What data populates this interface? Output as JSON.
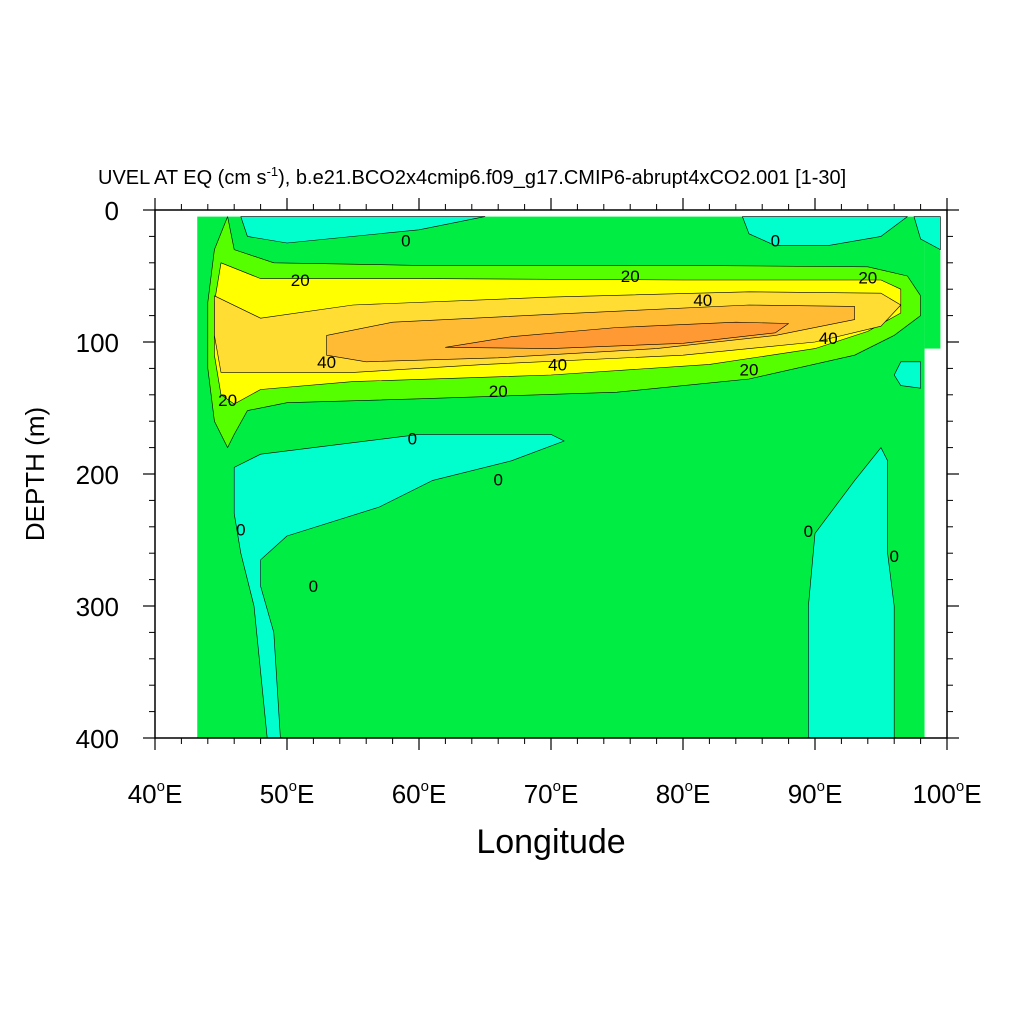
{
  "chart_data": {
    "type": "contour",
    "title_main": "UVEL AT EQ (cm s",
    "title_exponent": "-1",
    "title_rest": "), b.e21.BCO2x4cmip6.f09_g17.CMIP6-abrupt4xCO2.001 [1-30]",
    "xlabel": "Longitude",
    "ylabel": "DEPTH (m)",
    "xlim": [
      40,
      100
    ],
    "ylim": [
      0,
      400
    ],
    "y_inverted": true,
    "x_ticks": [
      {
        "value": 40,
        "num": "40",
        "deg": "o",
        "suffix": "E"
      },
      {
        "value": 50,
        "num": "50",
        "deg": "o",
        "suffix": "E"
      },
      {
        "value": 60,
        "num": "60",
        "deg": "o",
        "suffix": "E"
      },
      {
        "value": 70,
        "num": "70",
        "deg": "o",
        "suffix": "E"
      },
      {
        "value": 80,
        "num": "80",
        "deg": "o",
        "suffix": "E"
      },
      {
        "value": 90,
        "num": "90",
        "deg": "o",
        "suffix": "E"
      },
      {
        "value": 100,
        "num": "100",
        "deg": "o",
        "suffix": "E"
      }
    ],
    "y_ticks": [
      {
        "value": 0,
        "label": "0"
      },
      {
        "value": 100,
        "label": "100"
      },
      {
        "value": 200,
        "label": "200"
      },
      {
        "value": 300,
        "label": "300"
      },
      {
        "value": 400,
        "label": "400"
      }
    ],
    "contour_levels": [
      0,
      20,
      40,
      60
    ],
    "fill_colors": {
      "below_0": "#00ffcc",
      "0_to_10": "#00ee44",
      "10_to_20": "#55ff00",
      "20_to_30": "#ffff00",
      "30_to_40": "#ffdd33",
      "40_to_50": "#ffbb33",
      "50_to_60": "#ff9933"
    },
    "data_region": {
      "lon_min": 43.2,
      "lon_max": 99.5,
      "depth_min": 5,
      "depth_max": 400
    },
    "regions": [
      {
        "name": "band-10",
        "color": "#55ff00",
        "points": [
          [
            45.5,
            5
          ],
          [
            46,
            30
          ],
          [
            49,
            40
          ],
          [
            60,
            42
          ],
          [
            80,
            42
          ],
          [
            94,
            43
          ],
          [
            97,
            50
          ],
          [
            98,
            65
          ],
          [
            98,
            80
          ],
          [
            96,
            95
          ],
          [
            93,
            110
          ],
          [
            85,
            128
          ],
          [
            75,
            138
          ],
          [
            60,
            143
          ],
          [
            50,
            146
          ],
          [
            47,
            152
          ],
          [
            46,
            170
          ],
          [
            45.5,
            180
          ],
          [
            44.5,
            160
          ],
          [
            44,
            120
          ],
          [
            44,
            70
          ],
          [
            44.5,
            30
          ]
        ]
      },
      {
        "name": "band-20",
        "color": "#ffff00",
        "points": [
          [
            45,
            40
          ],
          [
            48,
            52
          ],
          [
            60,
            52
          ],
          [
            80,
            53
          ],
          [
            95,
            53
          ],
          [
            96.5,
            60
          ],
          [
            96.5,
            78
          ],
          [
            94,
            92
          ],
          [
            90,
            105
          ],
          [
            82,
            117
          ],
          [
            70,
            125
          ],
          [
            55,
            130
          ],
          [
            48,
            136
          ],
          [
            46,
            147
          ],
          [
            45,
            140
          ],
          [
            44.5,
            110
          ],
          [
            44.5,
            70
          ]
        ]
      },
      {
        "name": "band-30",
        "color": "#ffdd33",
        "points": [
          [
            44.5,
            65
          ],
          [
            48,
            82
          ],
          [
            55,
            72
          ],
          [
            70,
            66
          ],
          [
            85,
            62
          ],
          [
            95,
            63
          ],
          [
            96.5,
            72
          ],
          [
            95,
            88
          ],
          [
            90,
            100
          ],
          [
            80,
            110
          ],
          [
            65,
            117
          ],
          [
            55,
            123
          ],
          [
            45,
            123
          ],
          [
            44.5,
            95
          ]
        ]
      },
      {
        "name": "band-40",
        "color": "#ffbb33",
        "points": [
          [
            53,
            95
          ],
          [
            58,
            85
          ],
          [
            70,
            79
          ],
          [
            85,
            72
          ],
          [
            93,
            73
          ],
          [
            93,
            83
          ],
          [
            87,
            95
          ],
          [
            78,
            105
          ],
          [
            66,
            112
          ],
          [
            56,
            115
          ],
          [
            53,
            110
          ]
        ]
      },
      {
        "name": "band-50",
        "color": "#ff9933",
        "points": [
          [
            62,
            104
          ],
          [
            67,
            96
          ],
          [
            75,
            89
          ],
          [
            84,
            85
          ],
          [
            88,
            86
          ],
          [
            87,
            93
          ],
          [
            80,
            101
          ],
          [
            70,
            105
          ]
        ]
      },
      {
        "name": "neg-top-left",
        "color": "#00ffcc",
        "points": [
          [
            46.5,
            5
          ],
          [
            65,
            5
          ],
          [
            60,
            15
          ],
          [
            50,
            25
          ],
          [
            47,
            20
          ]
        ]
      },
      {
        "name": "neg-top-right",
        "color": "#00ffcc",
        "points": [
          [
            84.5,
            5
          ],
          [
            97,
            5
          ],
          [
            95,
            20
          ],
          [
            91,
            27
          ],
          [
            87,
            27
          ],
          [
            85,
            18
          ]
        ]
      },
      {
        "name": "neg-upper-right",
        "color": "#00ffcc",
        "points": [
          [
            97.5,
            5
          ],
          [
            99.5,
            5
          ],
          [
            99.5,
            30
          ],
          [
            98,
            22
          ]
        ]
      },
      {
        "name": "neg-small-right",
        "color": "#00ffcc",
        "points": [
          [
            96.5,
            115
          ],
          [
            98,
            115
          ],
          [
            98,
            135
          ],
          [
            96.5,
            133
          ],
          [
            96,
            125
          ]
        ]
      },
      {
        "name": "neg-left-deep",
        "color": "#00ffcc",
        "points": [
          [
            46,
            195
          ],
          [
            48,
            185
          ],
          [
            60,
            170
          ],
          [
            70,
            170
          ],
          [
            71,
            175
          ],
          [
            67,
            190
          ],
          [
            61,
            205
          ],
          [
            57,
            225
          ],
          [
            50,
            247
          ],
          [
            48,
            265
          ],
          [
            48,
            285
          ],
          [
            49,
            320
          ],
          [
            49.5,
            400
          ],
          [
            48.5,
            400
          ],
          [
            47.5,
            300
          ],
          [
            46.5,
            260
          ],
          [
            46,
            230
          ]
        ]
      },
      {
        "name": "neg-right-deep",
        "color": "#00ffcc",
        "points": [
          [
            89.5,
            400
          ],
          [
            89.5,
            300
          ],
          [
            90,
            245
          ],
          [
            93,
            205
          ],
          [
            95,
            180
          ],
          [
            95.5,
            190
          ],
          [
            95.5,
            260
          ],
          [
            96,
            300
          ],
          [
            96,
            400
          ]
        ]
      }
    ],
    "contour_labels": [
      {
        "text": "0",
        "lon": 59,
        "depth": 23
      },
      {
        "text": "0",
        "lon": 87,
        "depth": 23
      },
      {
        "text": "20",
        "lon": 51,
        "depth": 53
      },
      {
        "text": "20",
        "lon": 76,
        "depth": 50
      },
      {
        "text": "20",
        "lon": 94,
        "depth": 51
      },
      {
        "text": "40",
        "lon": 81.5,
        "depth": 68
      },
      {
        "text": "40",
        "lon": 53,
        "depth": 115
      },
      {
        "text": "40",
        "lon": 70.5,
        "depth": 117
      },
      {
        "text": "40",
        "lon": 91,
        "depth": 97
      },
      {
        "text": "20",
        "lon": 45.5,
        "depth": 144
      },
      {
        "text": "20",
        "lon": 66,
        "depth": 137
      },
      {
        "text": "20",
        "lon": 85,
        "depth": 121
      },
      {
        "text": "0",
        "lon": 59.5,
        "depth": 173
      },
      {
        "text": "0",
        "lon": 66,
        "depth": 204
      },
      {
        "text": "0",
        "lon": 46.5,
        "depth": 242
      },
      {
        "text": "0",
        "lon": 52,
        "depth": 285
      },
      {
        "text": "0",
        "lon": 89.5,
        "depth": 243
      },
      {
        "text": "0",
        "lon": 96,
        "depth": 262
      }
    ]
  }
}
